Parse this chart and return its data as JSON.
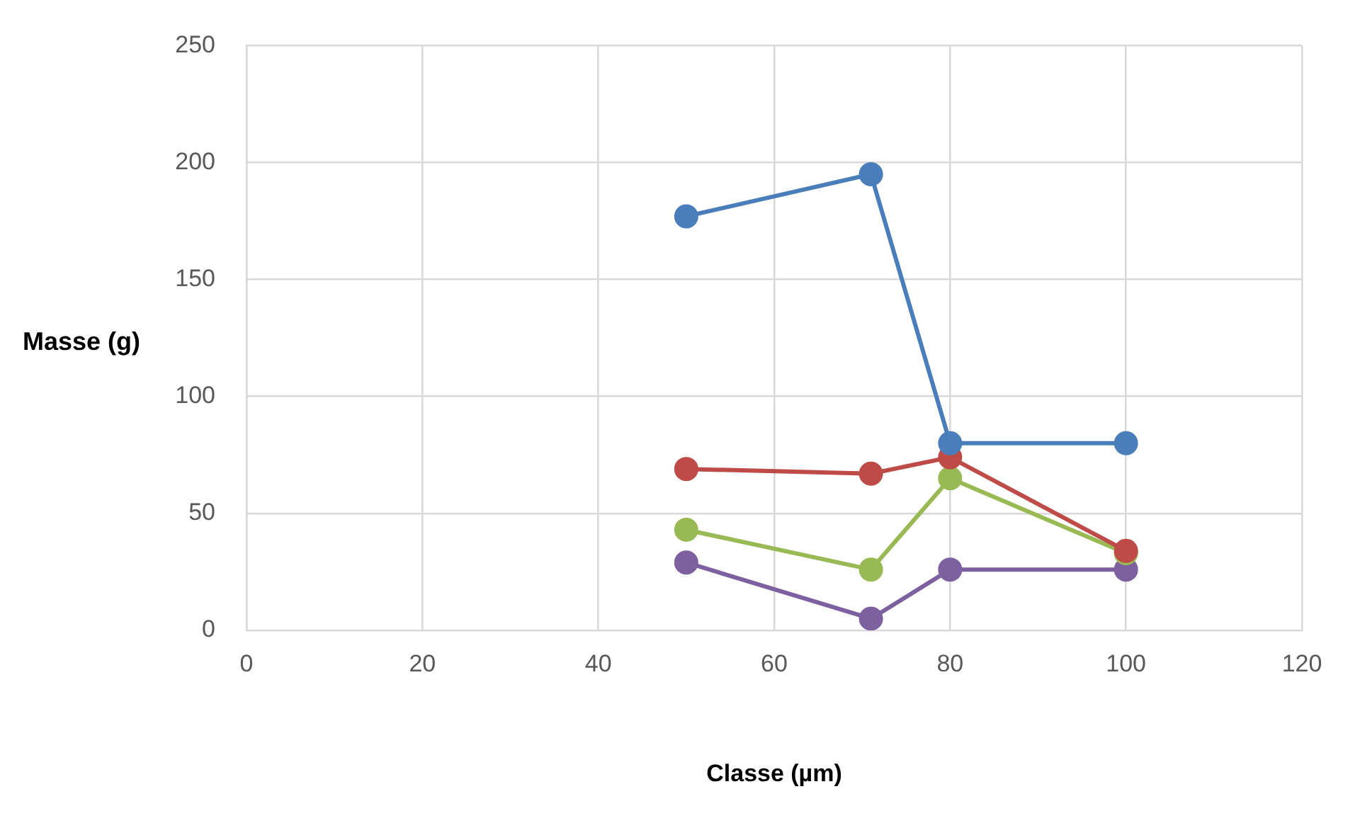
{
  "chart_data": {
    "type": "line",
    "xlabel": "Classe (µm)",
    "ylabel": "Masse (g)",
    "xlim": [
      0,
      120
    ],
    "xticks": [
      0,
      20,
      40,
      60,
      80,
      100,
      120
    ],
    "ylim": [
      0,
      250
    ],
    "yticks": [
      0,
      50,
      100,
      150,
      200,
      250
    ],
    "grid": true,
    "legend": false,
    "marker": "circle",
    "line_style": "solid",
    "x": [
      50,
      71,
      80,
      100
    ],
    "series": [
      {
        "color": "#4a7ebb",
        "values": [
          177,
          195,
          80,
          80
        ]
      },
      {
        "color": "#be4b48",
        "values": [
          69,
          67,
          74,
          34
        ]
      },
      {
        "color": "#98b954",
        "values": [
          43,
          26,
          65,
          33
        ]
      },
      {
        "color": "#7d60a0",
        "values": [
          29,
          5,
          26,
          26
        ]
      }
    ]
  }
}
